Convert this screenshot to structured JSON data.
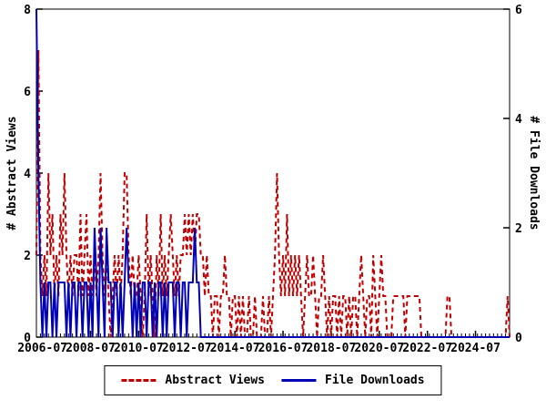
{
  "chart_data": {
    "type": "line",
    "title": "",
    "x_start_month": "2006-04",
    "x_end_month": "2025-12",
    "x_tick_labels": [
      "2006-07",
      "2008-07",
      "2010-07",
      "2012-07",
      "2014-07",
      "2016-07",
      "2018-07",
      "2020-07",
      "2022-07",
      "2024-07"
    ],
    "x_tick_month_indices": [
      3,
      27,
      51,
      75,
      99,
      123,
      147,
      171,
      195,
      219
    ],
    "x_minor_tick_every_months": 2,
    "grid": false,
    "legend_position": "bottom-center",
    "left_axis": {
      "label": "# Abstract Views",
      "ticks": [
        0,
        2,
        4,
        6,
        8
      ],
      "range": [
        0,
        8
      ]
    },
    "right_axis": {
      "label": "# File Downloads",
      "ticks": [
        0,
        2,
        4,
        6
      ],
      "range": [
        0,
        6
      ]
    },
    "series": [
      {
        "name": "Abstract Views",
        "axis": "left",
        "style": "dashed",
        "color": "#c00000",
        "values": [
          2,
          7,
          2,
          1,
          2,
          1,
          4,
          2,
          3,
          1,
          2,
          1,
          3,
          2,
          4,
          2,
          1,
          2,
          1,
          2,
          2,
          1,
          3,
          1,
          2,
          3,
          1,
          2,
          1,
          2,
          1,
          2,
          4,
          2,
          1,
          2,
          1,
          0,
          1,
          2,
          1,
          2,
          1,
          2,
          4,
          4,
          2,
          1,
          2,
          1,
          1,
          2,
          1,
          0,
          1,
          3,
          1,
          2,
          1,
          0,
          2,
          1,
          3,
          1,
          2,
          1,
          2,
          3,
          2,
          1,
          2,
          1,
          2,
          2,
          3,
          2,
          3,
          2,
          3,
          2,
          3,
          3,
          2,
          2,
          1,
          2,
          1,
          1,
          0,
          1,
          1,
          0,
          1,
          1,
          2,
          1,
          1,
          0,
          1,
          1,
          0,
          1,
          0,
          1,
          0,
          0,
          1,
          0,
          0,
          1,
          0,
          0,
          0,
          1,
          0,
          0,
          1,
          0,
          1,
          2,
          4,
          2,
          1,
          2,
          1,
          3,
          1,
          2,
          1,
          2,
          1,
          2,
          1,
          0,
          1,
          2,
          1,
          1,
          2,
          1,
          0,
          1,
          1,
          2,
          1,
          0,
          1,
          0,
          1,
          1,
          0,
          1,
          0,
          1,
          1,
          0,
          1,
          0,
          1,
          1,
          0,
          1,
          2,
          1,
          0,
          1,
          1,
          0,
          2,
          1,
          0,
          1,
          2,
          1,
          1,
          0,
          0,
          0,
          1,
          1,
          1,
          1,
          1,
          1,
          0,
          1,
          1,
          1,
          1,
          1,
          1,
          1,
          0,
          0,
          0,
          0,
          0,
          0,
          0,
          0,
          0,
          0,
          0,
          0,
          0,
          1,
          1,
          0,
          0,
          0,
          0,
          0,
          0,
          0,
          0,
          0,
          0,
          0,
          0,
          0,
          0,
          0,
          0,
          0,
          0,
          0,
          0,
          0,
          0,
          0,
          0,
          0,
          0,
          0,
          0,
          1,
          0
        ]
      },
      {
        "name": "File Downloads",
        "axis": "right",
        "style": "solid",
        "color": "#0000b4",
        "values": [
          6,
          3,
          1,
          0,
          1,
          0,
          1,
          1,
          0,
          1,
          0,
          1,
          1,
          1,
          1,
          0,
          1,
          0,
          1,
          1,
          0,
          1,
          1,
          0,
          1,
          1,
          0,
          1,
          0,
          2,
          1,
          0,
          2,
          1,
          0,
          2,
          1,
          1,
          0,
          1,
          1,
          0,
          1,
          0,
          1,
          2,
          1,
          1,
          0,
          1,
          0,
          1,
          0,
          1,
          1,
          0,
          1,
          1,
          0,
          1,
          0,
          1,
          1,
          0,
          1,
          0,
          1,
          1,
          1,
          0,
          1,
          1,
          0,
          1,
          1,
          0,
          1,
          1,
          1,
          2,
          1,
          1,
          0,
          0,
          0,
          0,
          0,
          0,
          0,
          0,
          0,
          0,
          0,
          0,
          0,
          0,
          0,
          0,
          0,
          0,
          0,
          0,
          0,
          0,
          0,
          0,
          0,
          0,
          0,
          0,
          0,
          0,
          0,
          0,
          0,
          0,
          0,
          0,
          0,
          0,
          0,
          0,
          0,
          0,
          0,
          0,
          0,
          0,
          0,
          0,
          0,
          0,
          0,
          0,
          0,
          0,
          0,
          0,
          0,
          0,
          0,
          0,
          0,
          0,
          0,
          0,
          0,
          0,
          0,
          0,
          0,
          0,
          0,
          0,
          0,
          0,
          0,
          0,
          0,
          0,
          0,
          0,
          0,
          0,
          0,
          0,
          0,
          0,
          0,
          0,
          0,
          0,
          0,
          0,
          0,
          0,
          0,
          0,
          0,
          0,
          0,
          0,
          0,
          0,
          0,
          0,
          0,
          0,
          0,
          0,
          0,
          0,
          0,
          0,
          0,
          0,
          0,
          0,
          0,
          0,
          0,
          0,
          0,
          0,
          0,
          0,
          0,
          0,
          0,
          0,
          0,
          0,
          0,
          0,
          0,
          0,
          0,
          0,
          0,
          0,
          0,
          0,
          0,
          0,
          0,
          0,
          0,
          0,
          0,
          0,
          0,
          0,
          0,
          0,
          0,
          0,
          0
        ]
      }
    ],
    "colors": {
      "abstract_views": "#c00000",
      "file_downloads": "#0000b4",
      "axis": "#000000",
      "background": "#ffffff"
    }
  }
}
